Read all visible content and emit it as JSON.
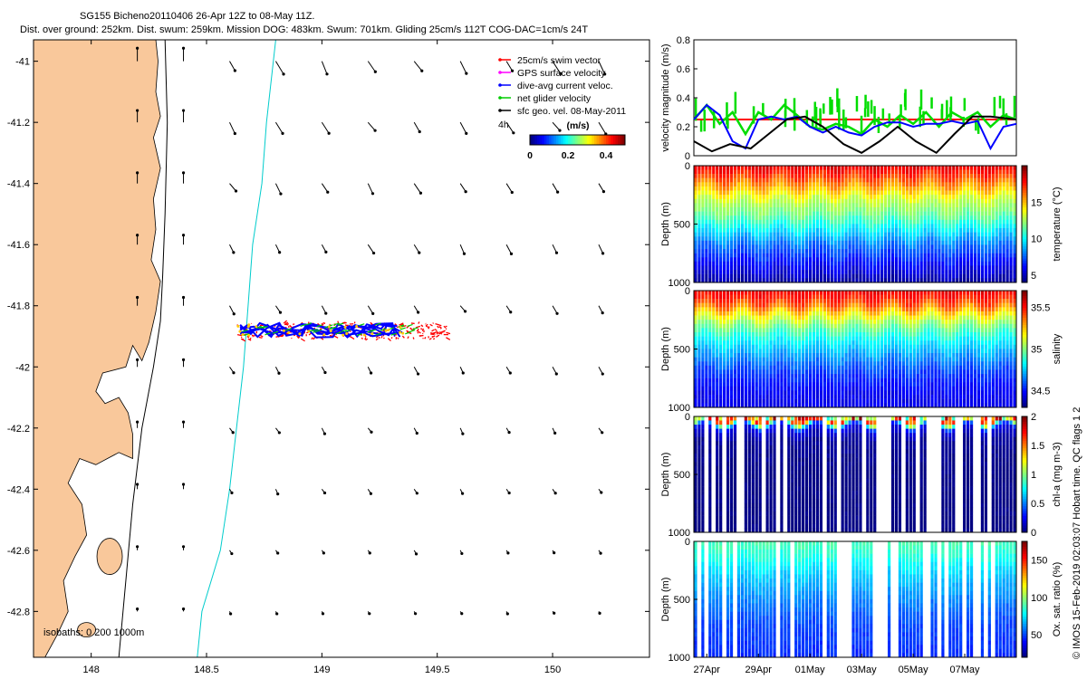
{
  "header": {
    "title": "SG155 Bicheno20110406 26-Apr 12Z to 08-May 11Z.",
    "subtitle": "Dist. over ground: 252km. Dist. swum: 259km. Mission DOG: 483km. Swum: 701km. Gliding 25cm/s 112T COG-DAC=1cm/s 24T"
  },
  "side_note": "© IMOS 15-Feb-2019 02:03:07 Hobart time. QC flags 1  2",
  "chart_data": [
    {
      "id": "map",
      "type": "scatter",
      "title": "",
      "xlim": [
        147.75,
        150.42
      ],
      "ylim": [
        -42.95,
        -40.93
      ],
      "x_ticks": [
        148,
        148.5,
        149,
        149.5,
        150
      ],
      "x_tick_labels": [
        "148",
        "148.5",
        "149",
        "149.5",
        "150"
      ],
      "y_ticks": [
        -41,
        -41.2,
        -41.4,
        -41.6,
        -41.8,
        -42,
        -42.2,
        -42.4,
        -42.6,
        -42.8
      ],
      "y_tick_labels": [
        "-41",
        "-41.2",
        "-41.4",
        "-41.6",
        "-41.8",
        "-42",
        "-42.2",
        "-42.4",
        "-42.6",
        "-42.8"
      ],
      "isobaths_label": "isobaths: 0   200  1000m",
      "colorbar": {
        "title": "(m/s)",
        "ticks": [
          0,
          0.2,
          0.4
        ],
        "tick_labels": [
          "0",
          "0.2",
          "0.4"
        ],
        "range": [
          0,
          0.5
        ]
      },
      "scale_label": "4h",
      "legend": [
        {
          "label": "25cm/s swim vector",
          "color": "#ff0000"
        },
        {
          "label": "GPS surface velocity",
          "color": "#ff00ff"
        },
        {
          "label": "dive-avg current veloc.",
          "color": "#0000ff"
        },
        {
          "label": "net glider velocity",
          "color": "#00cc00"
        },
        {
          "label": "sfc geo. vel. 08-May-2011",
          "color": "#000000"
        }
      ],
      "track": {
        "lon_start": 148.63,
        "lon_end": 149.55,
        "lat": -41.88
      },
      "geostrophic_vectors": {
        "lons": [
          148.2,
          148.4,
          148.6,
          148.8,
          149.0,
          149.2,
          149.4,
          149.6,
          149.8,
          150.0,
          150.2
        ],
        "lats": [
          -41.0,
          -41.2,
          -41.4,
          -41.6,
          -41.8,
          -42.0,
          -42.2,
          -42.4,
          -42.6,
          -42.8
        ],
        "note": "northward along the shelf near 148.2-148.4E, south-eastward offshore, weakening to the south"
      }
    },
    {
      "id": "velocity",
      "type": "line",
      "ylabel": "velocity magnitude (m/s)",
      "ylim": [
        0,
        0.8
      ],
      "y_ticks": [
        0,
        0.2,
        0.4,
        0.6,
        0.8
      ],
      "y_tick_labels": [
        "0",
        "0.2",
        "0.4",
        "0.6",
        "0.8"
      ],
      "xlim": [
        0,
        12.5
      ],
      "series": [
        {
          "name": "swim",
          "color": "#ff0000",
          "x": [
            0,
            12.5
          ],
          "values": [
            0.25,
            0.25
          ]
        },
        {
          "name": "net glider",
          "color": "#00dd00",
          "x": [
            0,
            0.5,
            1,
            1.5,
            2,
            2.5,
            3,
            3.5,
            4,
            4.5,
            5,
            5.5,
            6,
            6.5,
            7,
            7.5,
            8,
            8.5,
            9,
            9.5,
            10,
            10.5,
            11,
            11.5,
            12,
            12.5
          ],
          "values": [
            0.25,
            0.35,
            0.22,
            0.3,
            0.15,
            0.3,
            0.25,
            0.35,
            0.28,
            0.2,
            0.18,
            0.22,
            0.2,
            0.15,
            0.25,
            0.2,
            0.28,
            0.22,
            0.3,
            0.2,
            0.3,
            0.25,
            0.3,
            0.2,
            0.28,
            0.25
          ]
        },
        {
          "name": "dive-avg current",
          "color": "#0000ff",
          "x": [
            0,
            0.5,
            1,
            1.5,
            2,
            2.5,
            3,
            3.5,
            4,
            4.5,
            5,
            5.5,
            6,
            6.5,
            7,
            7.5,
            8,
            8.5,
            9,
            9.5,
            10,
            10.5,
            11,
            11.5,
            12,
            12.5
          ],
          "values": [
            0.25,
            0.35,
            0.28,
            0.1,
            0.05,
            0.25,
            0.27,
            0.25,
            0.27,
            0.2,
            0.16,
            0.2,
            0.16,
            0.14,
            0.2,
            0.23,
            0.23,
            0.2,
            0.22,
            0.22,
            0.24,
            0.22,
            0.24,
            0.05,
            0.2,
            0.22
          ]
        },
        {
          "name": "surface geo.",
          "color": "#000000",
          "x": [
            0,
            0.7,
            1.4,
            2.2,
            2.9,
            3.6,
            4.3,
            5.0,
            5.8,
            6.5,
            7.2,
            7.9,
            8.6,
            9.4,
            10.1,
            10.8,
            11.5,
            12.5
          ],
          "values": [
            0.1,
            0.03,
            0.08,
            0.05,
            0.15,
            0.25,
            0.27,
            0.2,
            0.08,
            0.02,
            0.1,
            0.2,
            0.1,
            0.02,
            0.15,
            0.27,
            0.27,
            0.25
          ]
        }
      ]
    },
    {
      "id": "temperature",
      "type": "heatmap",
      "ylabel": "Depth (m)",
      "y_ticks": [
        0,
        500,
        1000
      ],
      "y_tick_labels": [
        "0",
        "500",
        "1000"
      ],
      "ylim": [
        1000,
        0
      ],
      "colorbar": {
        "label": "temperature (°C)",
        "ticks": [
          5,
          10,
          15
        ],
        "tick_labels": [
          "5",
          "10",
          "15"
        ],
        "range": [
          4,
          20
        ]
      },
      "profile": {
        "depths": [
          0,
          100,
          200,
          300,
          400,
          500,
          600,
          700,
          800,
          900,
          1000
        ],
        "values": [
          18.5,
          17,
          15,
          13,
          12,
          10.5,
          9,
          7.5,
          6.5,
          5.5,
          4.5
        ]
      }
    },
    {
      "id": "salinity",
      "type": "heatmap",
      "ylabel": "Depth (m)",
      "y_ticks": [
        0,
        500,
        1000
      ],
      "y_tick_labels": [
        "0",
        "500",
        "1000"
      ],
      "ylim": [
        1000,
        0
      ],
      "colorbar": {
        "label": "salinity",
        "ticks": [
          34.5,
          35,
          35.5
        ],
        "tick_labels": [
          "34.5",
          "35",
          "35.5"
        ],
        "range": [
          34.3,
          35.7
        ]
      },
      "profile": {
        "depths": [
          0,
          100,
          200,
          300,
          400,
          500,
          600,
          700,
          800,
          900,
          1000
        ],
        "values": [
          35.55,
          35.45,
          35.2,
          35.0,
          34.85,
          34.75,
          34.65,
          34.55,
          34.5,
          34.45,
          34.45
        ]
      }
    },
    {
      "id": "chla",
      "type": "heatmap",
      "ylabel": "Depth (m)",
      "y_ticks": [
        0,
        500,
        1000
      ],
      "y_tick_labels": [
        "0",
        "500",
        "1000"
      ],
      "ylim": [
        1000,
        0
      ],
      "colorbar": {
        "label": "chl-a (mg m-3)",
        "ticks": [
          0,
          0.5,
          1,
          1.5,
          2
        ],
        "tick_labels": [
          "0",
          "0.5",
          "1",
          "1.5",
          "2"
        ],
        "range": [
          0,
          2
        ]
      },
      "profile": {
        "depths": [
          0,
          30,
          60,
          100,
          200,
          500,
          1000
        ],
        "values": [
          1.2,
          1.8,
          0.8,
          0.2,
          0.05,
          0.0,
          0.0
        ]
      }
    },
    {
      "id": "oxygen",
      "type": "heatmap",
      "ylabel": "Depth (m)",
      "xlabel": "",
      "y_ticks": [
        0,
        500,
        1000
      ],
      "y_tick_labels": [
        "0",
        "500",
        "1000"
      ],
      "ylim": [
        1000,
        0
      ],
      "colorbar": {
        "label": "Ox. sat. ratio (%)",
        "ticks": [
          50,
          100,
          150
        ],
        "tick_labels": [
          "50",
          "100",
          "150"
        ],
        "range": [
          20,
          175
        ]
      },
      "profile": {
        "depths": [
          0,
          100,
          300,
          500,
          700,
          1000
        ],
        "values": [
          90,
          85,
          70,
          60,
          50,
          45
        ]
      },
      "x_ticks": [
        0.5,
        2.5,
        4.5,
        6.5,
        8.5,
        10.5
      ],
      "x_tick_labels": [
        "27Apr",
        "29Apr",
        "01May",
        "03May",
        "05May",
        "07May"
      ]
    }
  ]
}
